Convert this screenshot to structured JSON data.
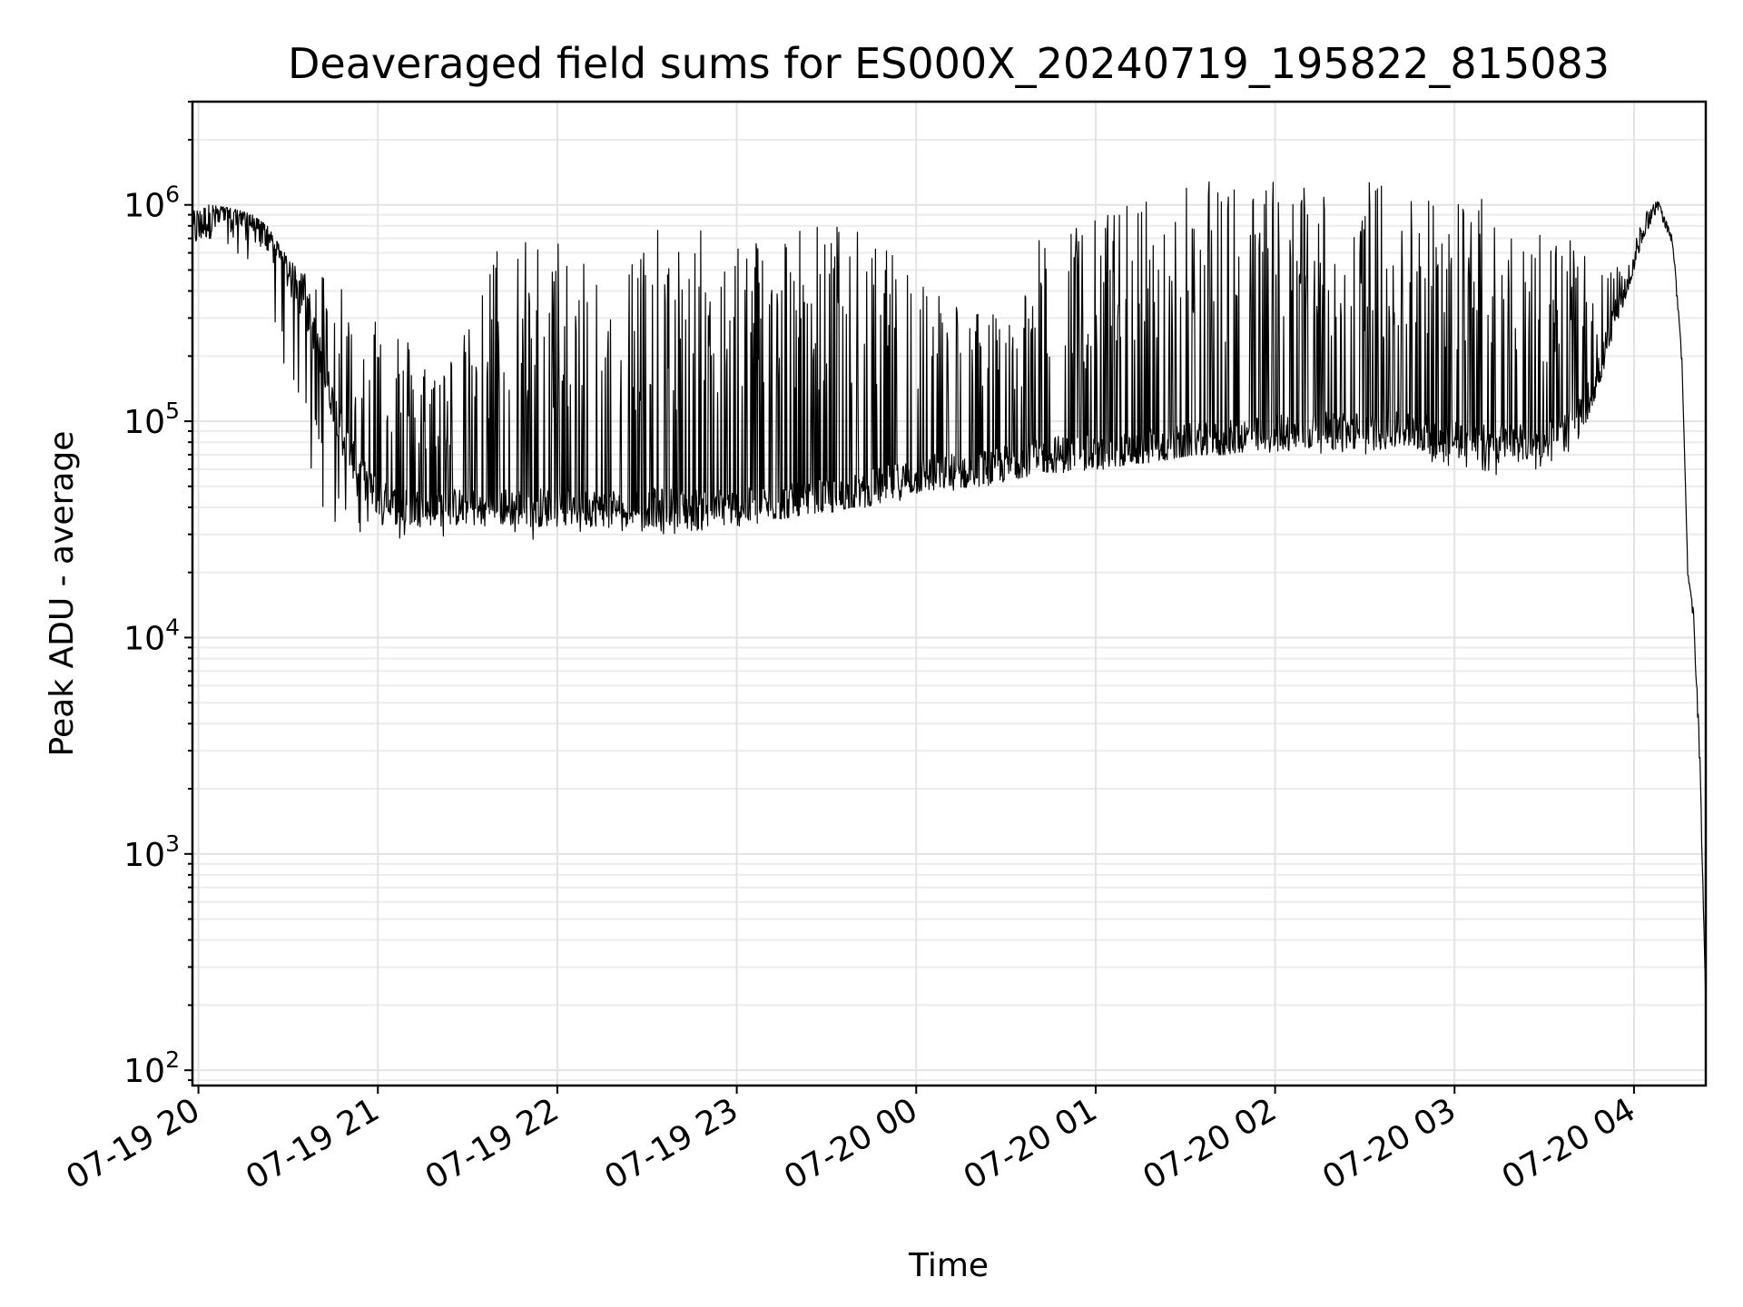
{
  "chart_data": {
    "type": "line",
    "title": "Deaveraged field sums for ES000X_20240719_195822_815083",
    "xlabel": "Time",
    "ylabel": "Peak ADU - average",
    "yscale": "log",
    "grid": "on",
    "legend": "none",
    "line_color": "#000000",
    "xlim": [
      "2024-07-19 19:58",
      "2024-07-20 04:24"
    ],
    "ylim": [
      85,
      3000000
    ],
    "x_ticks": [
      {
        "value": "2024-07-19 20:00",
        "label": "07-19 20"
      },
      {
        "value": "2024-07-19 21:00",
        "label": "07-19 21"
      },
      {
        "value": "2024-07-19 22:00",
        "label": "07-19 22"
      },
      {
        "value": "2024-07-19 23:00",
        "label": "07-19 23"
      },
      {
        "value": "2024-07-20 00:00",
        "label": "07-20 00"
      },
      {
        "value": "2024-07-20 01:00",
        "label": "07-20 01"
      },
      {
        "value": "2024-07-20 02:00",
        "label": "07-20 02"
      },
      {
        "value": "2024-07-20 03:00",
        "label": "07-20 03"
      },
      {
        "value": "2024-07-20 04:00",
        "label": "07-20 04"
      }
    ],
    "y_ticks": [
      {
        "value": 100,
        "base": "10",
        "exp": "2"
      },
      {
        "value": 1000,
        "base": "10",
        "exp": "3"
      },
      {
        "value": 10000,
        "base": "10",
        "exp": "4"
      },
      {
        "value": 100000,
        "base": "10",
        "exp": "5"
      },
      {
        "value": 1000000,
        "base": "10",
        "exp": "6"
      }
    ],
    "series": [
      {
        "x": [
          "2024-07-19 19:58",
          "2024-07-19 20:03",
          "2024-07-19 20:08",
          "2024-07-19 20:13",
          "2024-07-19 20:18",
          "2024-07-19 20:23",
          "2024-07-19 20:28",
          "2024-07-19 20:33",
          "2024-07-19 20:38",
          "2024-07-19 20:43",
          "2024-07-19 20:48",
          "2024-07-19 20:53",
          "2024-07-19 20:58",
          "2024-07-19 21:03",
          "2024-07-19 21:08",
          "2024-07-19 21:13",
          "2024-07-19 21:18",
          "2024-07-19 21:23",
          "2024-07-19 21:28",
          "2024-07-19 21:33",
          "2024-07-19 21:38",
          "2024-07-19 21:43",
          "2024-07-19 21:48",
          "2024-07-19 21:53",
          "2024-07-19 21:58",
          "2024-07-19 22:03",
          "2024-07-19 22:08",
          "2024-07-19 22:13",
          "2024-07-19 22:18",
          "2024-07-19 22:23",
          "2024-07-19 22:28",
          "2024-07-19 22:33",
          "2024-07-19 22:38",
          "2024-07-19 22:43",
          "2024-07-19 22:48",
          "2024-07-19 22:53",
          "2024-07-19 22:58",
          "2024-07-19 23:03",
          "2024-07-19 23:08",
          "2024-07-19 23:13",
          "2024-07-19 23:18",
          "2024-07-19 23:23",
          "2024-07-19 23:28",
          "2024-07-19 23:33",
          "2024-07-19 23:38",
          "2024-07-19 23:43",
          "2024-07-19 23:48",
          "2024-07-19 23:53",
          "2024-07-19 23:58",
          "2024-07-20 00:03",
          "2024-07-20 00:08",
          "2024-07-20 00:13",
          "2024-07-20 00:18",
          "2024-07-20 00:23",
          "2024-07-20 00:28",
          "2024-07-20 00:33",
          "2024-07-20 00:38",
          "2024-07-20 00:43",
          "2024-07-20 00:48",
          "2024-07-20 00:53",
          "2024-07-20 00:58",
          "2024-07-20 01:03",
          "2024-07-20 01:08",
          "2024-07-20 01:13",
          "2024-07-20 01:18",
          "2024-07-20 01:23",
          "2024-07-20 01:28",
          "2024-07-20 01:33",
          "2024-07-20 01:38",
          "2024-07-20 01:43",
          "2024-07-20 01:48",
          "2024-07-20 01:53",
          "2024-07-20 01:58",
          "2024-07-20 02:03",
          "2024-07-20 02:08",
          "2024-07-20 02:13",
          "2024-07-20 02:18",
          "2024-07-20 02:23",
          "2024-07-20 02:28",
          "2024-07-20 02:33",
          "2024-07-20 02:38",
          "2024-07-20 02:43",
          "2024-07-20 02:48",
          "2024-07-20 02:53",
          "2024-07-20 02:58",
          "2024-07-20 03:03",
          "2024-07-20 03:08",
          "2024-07-20 03:13",
          "2024-07-20 03:18",
          "2024-07-20 03:23",
          "2024-07-20 03:28",
          "2024-07-20 03:33",
          "2024-07-20 03:38",
          "2024-07-20 03:43",
          "2024-07-20 03:48",
          "2024-07-20 03:53",
          "2024-07-20 03:58",
          "2024-07-20 04:03",
          "2024-07-20 04:08",
          "2024-07-20 04:13",
          "2024-07-20 04:16",
          "2024-07-20 04:18",
          "2024-07-20 04:20",
          "2024-07-20 04:22",
          "2024-07-20 04:24"
        ],
        "base": [
          750000,
          850000,
          880000,
          870000,
          850000,
          700000,
          550000,
          400000,
          280000,
          150000,
          90000,
          60000,
          48000,
          42000,
          40000,
          40000,
          40000,
          40000,
          40000,
          40000,
          40000,
          40000,
          40000,
          40000,
          40000,
          40000,
          40000,
          40000,
          40000,
          40000,
          40000,
          40000,
          40000,
          40000,
          40000,
          40000,
          40000,
          40000,
          40000,
          42000,
          42000,
          42000,
          44000,
          44000,
          46000,
          48000,
          50000,
          52000,
          55000,
          57000,
          58000,
          58000,
          60000,
          60000,
          62000,
          65000,
          68000,
          70000,
          70000,
          70000,
          70000,
          70000,
          72000,
          72000,
          75000,
          75000,
          78000,
          80000,
          80000,
          80000,
          85000,
          85000,
          85000,
          90000,
          90000,
          90000,
          90000,
          90000,
          90000,
          90000,
          90000,
          90000,
          90000,
          85000,
          85000,
          85000,
          80000,
          80000,
          80000,
          80000,
          80000,
          85000,
          90000,
          110000,
          160000,
          280000,
          420000,
          750000,
          1000000,
          700000,
          200000,
          20000,
          12000,
          3000,
          200
        ],
        "high": [
          950000,
          1000000,
          980000,
          950000,
          900000,
          800000,
          620000,
          520000,
          500000,
          520000,
          520000,
          200000,
          400000,
          350000,
          300000,
          200000,
          230000,
          200000,
          250000,
          300000,
          680000,
          730000,
          720000,
          730000,
          740000,
          720000,
          720000,
          760000,
          750000,
          740000,
          760000,
          770000,
          760000,
          780000,
          780000,
          800000,
          790000,
          810000,
          830000,
          840000,
          850000,
          860000,
          850000,
          850000,
          850000,
          700000,
          650000,
          600000,
          580000,
          500000,
          420000,
          400000,
          350000,
          330000,
          300000,
          420000,
          600000,
          750000,
          800000,
          850000,
          900000,
          950000,
          1000000,
          1100000,
          1150000,
          1200000,
          1250000,
          1250000,
          1300000,
          1300000,
          1300000,
          1350000,
          1350000,
          1300000,
          1300000,
          1350000,
          1350000,
          1300000,
          1300000,
          1350000,
          1250000,
          1250000,
          1250000,
          1200000,
          1200000,
          1150000,
          1100000,
          1050000,
          1000000,
          950000,
          900000,
          800000,
          700000,
          600000,
          550000,
          500000,
          550000,
          900000,
          1050000,
          700000,
          200000,
          20000,
          13000,
          3000,
          200
        ],
        "low": [
          650000,
          700000,
          700000,
          600000,
          500000,
          350000,
          200000,
          100000,
          50000,
          32000,
          28000,
          28000,
          30000,
          27000,
          27000,
          26000,
          27000,
          28000,
          28000,
          27000,
          26000,
          27000,
          28000,
          28000,
          29000,
          30000,
          30000,
          30000,
          30000,
          30000,
          30000,
          30000,
          30000,
          31000,
          31000,
          32000,
          32000,
          33000,
          34000,
          35000,
          36000,
          37000,
          38000,
          38000,
          40000,
          40000,
          42000,
          42000,
          44000,
          46000,
          48000,
          48000,
          50000,
          50000,
          52000,
          54000,
          56000,
          58000,
          58000,
          58000,
          60000,
          60000,
          62000,
          64000,
          64000,
          66000,
          68000,
          70000,
          70000,
          70000,
          72000,
          72000,
          72000,
          72000,
          72000,
          72000,
          70000,
          70000,
          70000,
          70000,
          70000,
          68000,
          66000,
          64000,
          62000,
          60000,
          58000,
          56000,
          56000,
          56000,
          60000,
          65000,
          70000,
          90000,
          140000,
          250000,
          400000,
          700000,
          950000,
          650000,
          180000,
          18000,
          11000,
          2500,
          200
        ]
      }
    ]
  }
}
